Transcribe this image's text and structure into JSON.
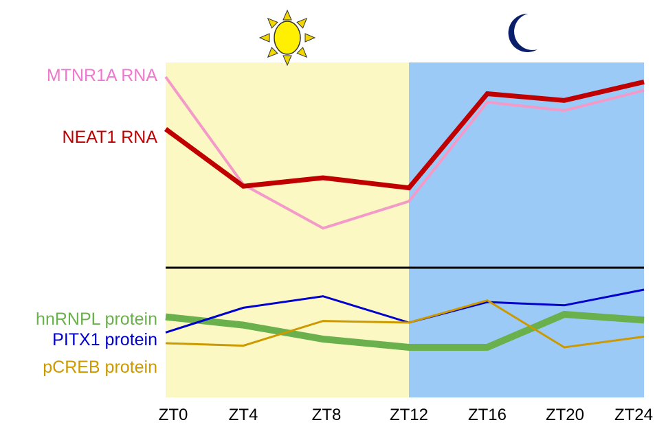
{
  "chart_data": [
    {
      "type": "line",
      "panel": "top",
      "x": [
        "ZT0",
        "ZT4",
        "ZT8",
        "ZT12",
        "ZT16",
        "ZT20",
        "ZT24"
      ],
      "series": [
        {
          "name": "MTNR1A RNA",
          "color": "#f49ac9",
          "values": [
            100,
            36,
            10,
            26,
            85,
            80,
            92
          ]
        },
        {
          "name": "NEAT1 RNA",
          "color": "#c00000",
          "values": [
            69,
            35,
            40,
            34,
            90,
            86,
            97
          ]
        }
      ],
      "ylim": [
        0,
        100
      ]
    },
    {
      "type": "line",
      "panel": "bottom",
      "x": [
        "ZT0",
        "ZT4",
        "ZT8",
        "ZT12",
        "ZT16",
        "ZT20",
        "ZT24"
      ],
      "series": [
        {
          "name": "hnRNPL protein",
          "color": "#6ab04c",
          "values": [
            62,
            52,
            35,
            25,
            25,
            65,
            58
          ]
        },
        {
          "name": "PITX1 protein",
          "color": "#0000cc",
          "values": [
            43,
            73,
            87,
            55,
            80,
            76,
            95
          ]
        },
        {
          "name": "pCREB protein",
          "color": "#cc9900",
          "values": [
            30,
            27,
            57,
            55,
            82,
            25,
            38
          ]
        }
      ],
      "ylim": [
        0,
        100
      ]
    }
  ],
  "phases": {
    "light_color": "#fbf8c4",
    "dark_color": "#9ccaf7",
    "divider_x": "ZT12",
    "sun_icon": "sun-icon",
    "moon_icon": "moon-icon"
  }
}
